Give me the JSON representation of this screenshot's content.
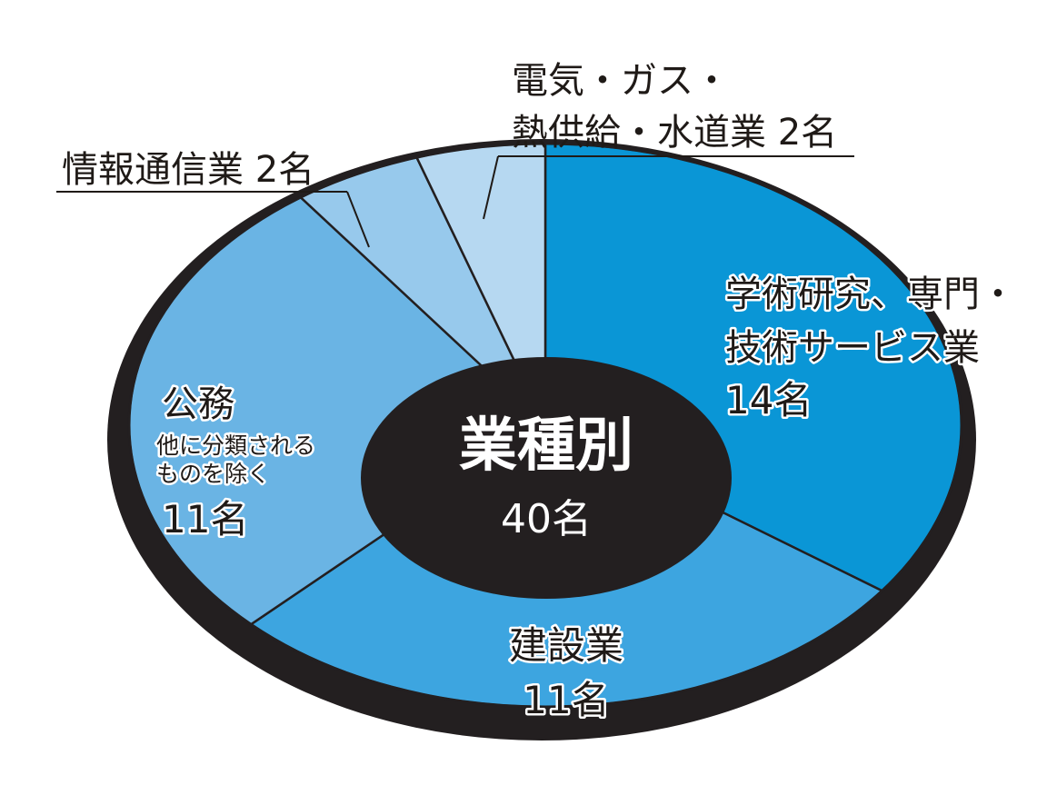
{
  "chart_data": {
    "type": "pie",
    "title": "業種別",
    "total_label": "40名",
    "slices": [
      {
        "name": "学術研究、専門・技術サービス業",
        "label_lines": [
          "学術研究、専門・",
          "技術サービス業"
        ],
        "value": 14,
        "value_label": "14名",
        "color": "#0a96d6"
      },
      {
        "name": "建設業",
        "label_lines": [
          "建設業"
        ],
        "value": 11,
        "value_label": "11名",
        "color": "#3da5e0"
      },
      {
        "name": "公務",
        "label_lines": [
          "公務"
        ],
        "sublabel_lines": [
          "他に分類される",
          "ものを除く"
        ],
        "value": 11,
        "value_label": "11名",
        "color": "#6ab4e4"
      },
      {
        "name": "情報通信業",
        "label_lines": [
          "情報通信業"
        ],
        "value": 2,
        "value_label": "2名",
        "color": "#97c9ec"
      },
      {
        "name": "電気・ガス・熱供給・水道業",
        "label_lines": [
          "電気・ガス・",
          "熱供給・水道業"
        ],
        "value": 2,
        "value_label": "2名",
        "color": "#b6d8f1"
      }
    ]
  },
  "labels": {
    "center_title": "業種別",
    "center_total": "40名",
    "s1_line1": "学術研究、専門・",
    "s1_line2": "技術サービス業",
    "s1_value": "14名",
    "s2_line1": "建設業",
    "s2_value": "11名",
    "s3_line1": "公務",
    "s3_sub1": "他に分類される",
    "s3_sub2": "ものを除く",
    "s3_value": "11名",
    "s4_text": "情報通信業 2名",
    "s5_line1": "電気・ガス・",
    "s5_line2": "熱供給・水道業 2名"
  }
}
